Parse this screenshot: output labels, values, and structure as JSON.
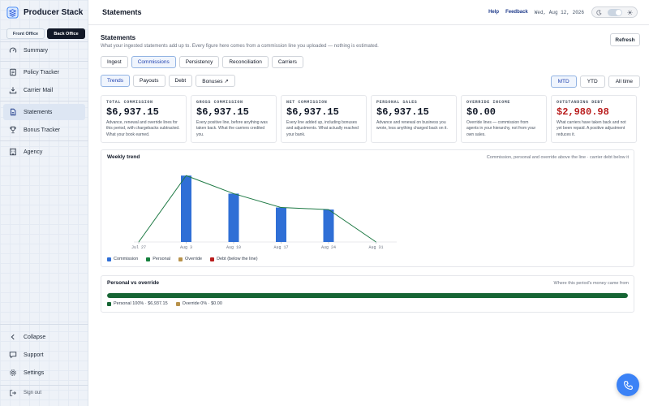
{
  "app": {
    "name": "Producer Stack"
  },
  "office": {
    "front": "Front Office",
    "back": "Back Office",
    "active": "back"
  },
  "nav": {
    "items": [
      {
        "label": "Summary",
        "icon": "gauge-icon"
      },
      {
        "label": "Policy Tracker",
        "icon": "policy-icon"
      },
      {
        "label": "Carrier Mail",
        "icon": "inbox-download-icon"
      },
      {
        "label": "Statements",
        "icon": "document-icon",
        "active": true
      },
      {
        "label": "Bonus Tracker",
        "icon": "trophy-icon"
      },
      {
        "label": "Agency",
        "icon": "building-icon"
      }
    ],
    "bottom": [
      {
        "label": "Collapse",
        "icon": "chevron-left-icon"
      },
      {
        "label": "Support",
        "icon": "chat-icon"
      },
      {
        "label": "Settings",
        "icon": "gear-icon"
      }
    ],
    "signout": "Sign out"
  },
  "header": {
    "title": "Statements",
    "help": "Help",
    "feedback": "Feedback",
    "date": "Wed, Aug 12, 2026"
  },
  "section": {
    "title": "Statements",
    "subtitle": "What your ingested statements add up to. Every figure here comes from a commission line you uploaded — nothing is estimated.",
    "refresh": "Refresh"
  },
  "tabs": [
    "Ingest",
    "Commissions",
    "Persistency",
    "Reconciliation",
    "Carriers"
  ],
  "active_tab": "Commissions",
  "subtabs": [
    "Trends",
    "Payouts",
    "Debt",
    "Bonuses ↗"
  ],
  "active_subtab": "Trends",
  "ranges": [
    "MTD",
    "YTD",
    "All time"
  ],
  "active_range": "MTD",
  "cards": [
    {
      "label": "TOTAL COMMISSION",
      "value": "$6,937.15",
      "desc": "Advance, renewal and override lines for this period, with chargebacks subtracted. What your book earned."
    },
    {
      "label": "GROSS COMMISSION",
      "value": "$6,937.15",
      "desc": "Every positive line, before anything was taken back. What the carriers credited you."
    },
    {
      "label": "NET COMMISSION",
      "value": "$6,937.15",
      "desc": "Every line added up, including bonuses and adjustments. What actually reached your bank."
    },
    {
      "label": "PERSONAL SALES",
      "value": "$6,937.15",
      "desc": "Advance and renewal on business you wrote, less anything charged back on it."
    },
    {
      "label": "OVERRIDE INCOME",
      "value": "$0.00",
      "desc": "Override lines — commission from agents in your hierarchy, not from your own sales."
    },
    {
      "label": "OUTSTANDING DEBT",
      "value": "$2,980.98",
      "desc": "What carriers have taken back and not yet been repaid. A positive adjustment reduces it.",
      "alert": true
    }
  ],
  "trend": {
    "title": "Weekly trend",
    "note": "Commission, personal and override above the line · carrier debt below it",
    "legend": [
      {
        "label": "Commission",
        "color": "#2f6fd6"
      },
      {
        "label": "Personal",
        "color": "#15803d"
      },
      {
        "label": "Override",
        "color": "#b8924a"
      },
      {
        "label": "Debt (below the line)",
        "color": "#b91c1c"
      }
    ]
  },
  "chart_data": {
    "type": "bar",
    "categories": [
      "Jul 27",
      "Aug 3",
      "Aug 10",
      "Aug 17",
      "Aug 24",
      "Aug 31"
    ],
    "series": [
      {
        "name": "Commission",
        "values": [
          0,
          2580,
          1880,
          1340,
          1260,
          0
        ]
      },
      {
        "name": "Personal",
        "values": [
          0,
          2580,
          1880,
          1340,
          1260,
          0
        ]
      },
      {
        "name": "Override",
        "values": [
          0,
          0,
          0,
          0,
          0,
          0
        ]
      }
    ],
    "grid": false,
    "legend": "bottom-left"
  },
  "split": {
    "title": "Personal vs override",
    "note": "Where this period's money came from",
    "personal_fraction": 1.0,
    "personal_label": "Personal 100% · $6,937.15",
    "override_label": "Override 0% · $0.00",
    "personal_color": "#166534",
    "override_color": "#b8924a"
  }
}
